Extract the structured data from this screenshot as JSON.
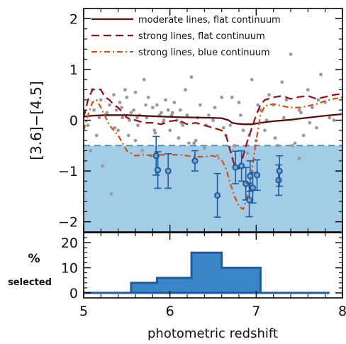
{
  "chart_data": [
    {
      "type": "scatter",
      "ylabel": "[3.6]−[4.5]",
      "xlim": [
        5,
        8
      ],
      "ylim": [
        -2.2,
        2.2
      ],
      "x_ticks": [
        5,
        6,
        7,
        8
      ],
      "y_ticks": [
        -2,
        -1,
        0,
        1,
        2
      ],
      "y_tick_labels": [
        "−2",
        "−1",
        "0",
        "1",
        "2"
      ],
      "selection_threshold": -0.5,
      "colors": {
        "selection_region": "#a3cde6",
        "threshold_line": "#4f8fc0",
        "scatter": "#9a9a9a",
        "selected_marker": "#1f5b9f",
        "model_moderate_flat": "#5a0f0f",
        "model_strong_flat": "#9a1414",
        "model_strong_blue": "#d2521a"
      },
      "legend": {
        "placement": "top-right",
        "entries": [
          "moderate lines, flat continuum",
          "strong lines, flat continuum",
          "strong lines, blue continuum"
        ]
      },
      "series": [
        {
          "name": "moderate lines, flat continuum",
          "style": "solid",
          "x": [
            5.0,
            5.1,
            5.25,
            5.5,
            5.8,
            6.1,
            6.4,
            6.6,
            6.68,
            6.72,
            6.78,
            6.85,
            6.95,
            7.05,
            7.2,
            7.4,
            7.6,
            7.8,
            8.0
          ],
          "y": [
            0.07,
            0.09,
            0.1,
            0.1,
            0.08,
            0.06,
            0.05,
            0.04,
            0.0,
            -0.05,
            -0.07,
            -0.08,
            -0.08,
            -0.05,
            -0.02,
            0.01,
            0.05,
            0.09,
            0.12
          ]
        },
        {
          "name": "strong lines, flat continuum",
          "style": "dashed",
          "x": [
            5.0,
            5.05,
            5.1,
            5.15,
            5.2,
            5.25,
            5.3,
            5.35,
            5.4,
            5.5,
            5.6,
            5.7,
            5.8,
            5.9,
            6.0,
            6.1,
            6.2,
            6.3,
            6.4,
            6.5,
            6.6,
            6.65,
            6.7,
            6.75,
            6.8,
            6.85,
            6.9,
            6.95,
            7.0,
            7.05,
            7.1,
            7.2,
            7.3,
            7.4,
            7.5,
            7.6,
            7.7,
            7.8,
            7.9,
            8.0
          ],
          "y": [
            0.05,
            0.4,
            0.6,
            0.62,
            0.6,
            0.45,
            0.4,
            0.3,
            0.25,
            0.05,
            0.0,
            -0.05,
            -0.05,
            -0.08,
            -0.02,
            0.0,
            -0.08,
            -0.05,
            -0.1,
            -0.15,
            -0.2,
            -0.3,
            -0.6,
            -0.9,
            -0.95,
            -0.7,
            -0.4,
            -0.15,
            0.1,
            0.3,
            0.4,
            0.45,
            0.48,
            0.42,
            0.46,
            0.48,
            0.42,
            0.46,
            0.5,
            0.52
          ]
        },
        {
          "name": "strong lines, blue continuum",
          "style": "dashdot",
          "x": [
            5.0,
            5.05,
            5.1,
            5.15,
            5.2,
            5.3,
            5.4,
            5.5,
            5.6,
            5.7,
            5.8,
            5.9,
            6.0,
            6.1,
            6.2,
            6.3,
            6.4,
            6.5,
            6.6,
            6.65,
            6.7,
            6.75,
            6.8,
            6.85,
            6.9,
            6.95,
            7.0,
            7.05,
            7.1,
            7.2,
            7.3,
            7.4,
            7.5,
            7.6,
            7.7,
            7.8,
            7.9,
            8.0
          ],
          "y": [
            -0.2,
            0.1,
            0.35,
            0.4,
            0.25,
            -0.1,
            -0.3,
            -0.6,
            -0.7,
            -0.68,
            -0.7,
            -0.68,
            -0.68,
            -0.68,
            -0.7,
            -0.72,
            -0.72,
            -0.7,
            -0.78,
            -0.95,
            -1.25,
            -1.5,
            -1.7,
            -1.75,
            -1.5,
            -1.0,
            -0.4,
            0.1,
            0.28,
            0.32,
            0.28,
            0.25,
            0.25,
            0.28,
            0.32,
            0.38,
            0.42,
            0.45
          ]
        }
      ],
      "scatter_points": {
        "x": [
          5.05,
          5.1,
          5.12,
          5.15,
          5.2,
          5.22,
          5.25,
          5.3,
          5.32,
          5.35,
          5.38,
          5.4,
          5.42,
          5.45,
          5.48,
          5.5,
          5.52,
          5.55,
          5.58,
          5.6,
          5.62,
          5.65,
          5.68,
          5.7,
          5.72,
          5.75,
          5.78,
          5.8,
          5.82,
          5.85,
          5.88,
          5.9,
          5.92,
          5.95,
          5.98,
          6.0,
          6.02,
          6.05,
          6.08,
          6.1,
          6.12,
          6.15,
          6.18,
          6.2,
          6.25,
          6.3,
          6.35,
          6.4,
          6.45,
          6.5,
          6.55,
          6.6,
          6.65,
          6.7,
          6.75,
          6.8,
          6.85,
          6.9,
          6.95,
          7.0,
          7.05,
          7.1,
          7.15,
          7.2,
          7.25,
          7.3,
          7.35,
          7.4,
          7.45,
          7.5,
          7.55,
          7.6,
          7.65,
          7.7,
          7.75,
          7.8,
          7.85,
          7.9,
          5.18,
          5.27,
          5.36,
          5.44,
          5.53,
          5.63,
          5.73,
          5.83,
          5.93,
          6.03,
          6.13,
          6.22,
          6.32,
          6.42,
          6.52,
          6.62,
          6.72,
          6.82,
          6.92,
          7.02,
          7.12,
          7.22,
          7.32,
          7.42,
          7.52,
          7.62,
          7.72,
          5.08,
          5.6,
          6.28,
          6.95,
          7.5
        ],
        "y": [
          -0.1,
          0.6,
          0.2,
          -0.3,
          0.4,
          -0.9,
          0.1,
          0.3,
          -1.45,
          0.5,
          0.2,
          -0.2,
          0.35,
          0.05,
          0.6,
          0.45,
          -0.3,
          0.15,
          0.2,
          -0.4,
          0.05,
          0.1,
          -0.6,
          0.8,
          0.3,
          0.45,
          -0.7,
          0.25,
          -0.2,
          0.3,
          0.1,
          0.15,
          -0.05,
          0.4,
          0.2,
          -0.2,
          0.1,
          0.35,
          0.0,
          -0.35,
          0.2,
          -0.1,
          0.6,
          0.1,
          0.85,
          -0.4,
          0.3,
          -0.55,
          0.1,
          0.0,
          -0.7,
          0.45,
          -0.3,
          -0.1,
          -0.5,
          0.35,
          -0.2,
          -0.65,
          -1.35,
          -0.4,
          0.2,
          -0.2,
          0.5,
          0.3,
          -0.5,
          0.75,
          0.4,
          1.3,
          -0.45,
          0.2,
          -0.3,
          0.6,
          0.25,
          -0.15,
          0.9,
          0.35,
          0.05,
          0.0,
          0.05,
          0.15,
          -0.15,
          0.25,
          0.0,
          -0.1,
          0.05,
          -0.25,
          0.0,
          0.15,
          -0.05,
          -0.45,
          0.05,
          -0.1,
          0.25,
          -0.15,
          0.45,
          0.1,
          -0.3,
          0.3,
          0.0,
          -0.35,
          0.05,
          -0.5,
          0.15,
          -0.05,
          0.4,
          -0.6,
          0.55,
          -0.45,
          0.8,
          -0.75
        ]
      },
      "selected_points": [
        {
          "x": 5.84,
          "y": -0.7,
          "err": 0.38
        },
        {
          "x": 5.86,
          "y": -0.98,
          "err": 0.36
        },
        {
          "x": 5.98,
          "y": -1.0,
          "err": 0.34
        },
        {
          "x": 6.29,
          "y": -0.8,
          "err": 0.2
        },
        {
          "x": 6.55,
          "y": -1.48,
          "err": 0.43
        },
        {
          "x": 6.76,
          "y": -0.93,
          "err": 0.32
        },
        {
          "x": 6.83,
          "y": -0.9,
          "err": 0.3
        },
        {
          "x": 6.88,
          "y": -1.25,
          "err": 0.32
        },
        {
          "x": 6.92,
          "y": -1.57,
          "err": 0.33
        },
        {
          "x": 6.93,
          "y": -1.1,
          "err": 0.3
        },
        {
          "x": 6.96,
          "y": -1.33,
          "err": 0.3
        },
        {
          "x": 7.01,
          "y": -1.08,
          "err": 0.3
        },
        {
          "x": 7.26,
          "y": -1.18,
          "err": 0.3
        },
        {
          "x": 7.27,
          "y": -1.0,
          "err": 0.3
        }
      ]
    },
    {
      "type": "bar",
      "title": "%",
      "ylabel": "selected",
      "xlabel": "photometric redshift",
      "xlim": [
        5,
        8
      ],
      "ylim": [
        -2,
        24
      ],
      "y_ticks": [
        0,
        10,
        20
      ],
      "x_ticks": [
        5,
        6,
        7,
        8
      ],
      "bin_edges": [
        5.0,
        5.55,
        5.85,
        6.25,
        6.6,
        6.9,
        7.05,
        7.55,
        7.85
      ],
      "values": [
        0,
        4,
        6,
        16,
        10,
        10,
        0,
        0
      ],
      "fill_color": "#3a86c8",
      "edge_color": "#1f5b9f"
    }
  ]
}
